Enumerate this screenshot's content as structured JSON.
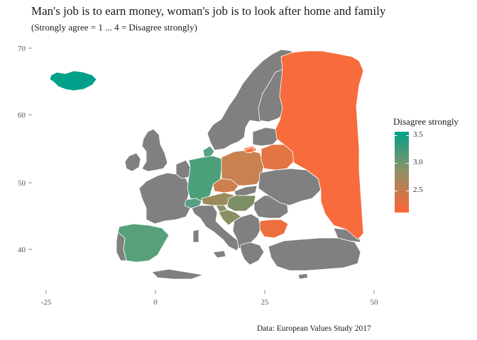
{
  "header": {
    "title": "Man's job is to earn money, woman's job is to look after home and family",
    "subtitle": "(Strongly agree = 1 ... 4 = Disagree strongly)"
  },
  "caption": "Data: European Values Study 2017",
  "axes": {
    "x_ticks": [
      "-25",
      "0",
      "25",
      "50"
    ],
    "y_ticks": [
      "40",
      "50",
      "60",
      "70"
    ]
  },
  "legend": {
    "title": "Disagree strongly",
    "labels": [
      "3.5",
      "3.0",
      "2.5"
    ],
    "colors": {
      "high": "#00a08a",
      "mid": "#86936a",
      "low": "#ff6536"
    }
  },
  "colors": {
    "no_data": "#808080",
    "iceland": "#00a08a",
    "germany": "#4aa07a",
    "spain": "#56a07a",
    "poland": "#c98152",
    "russia": "#f76b3c",
    "belarus": "#e47444",
    "bulgaria": "#ec703f",
    "czechia": "#cf7e4e",
    "austria": "#9b8b5e",
    "switzerland": "#55a080",
    "slovenia": "#8c9163",
    "croatia": "#8b9062",
    "hungary": "#7d8f66",
    "lithuania": "#f06c3d",
    "denmark": "#5aa083"
  }
}
